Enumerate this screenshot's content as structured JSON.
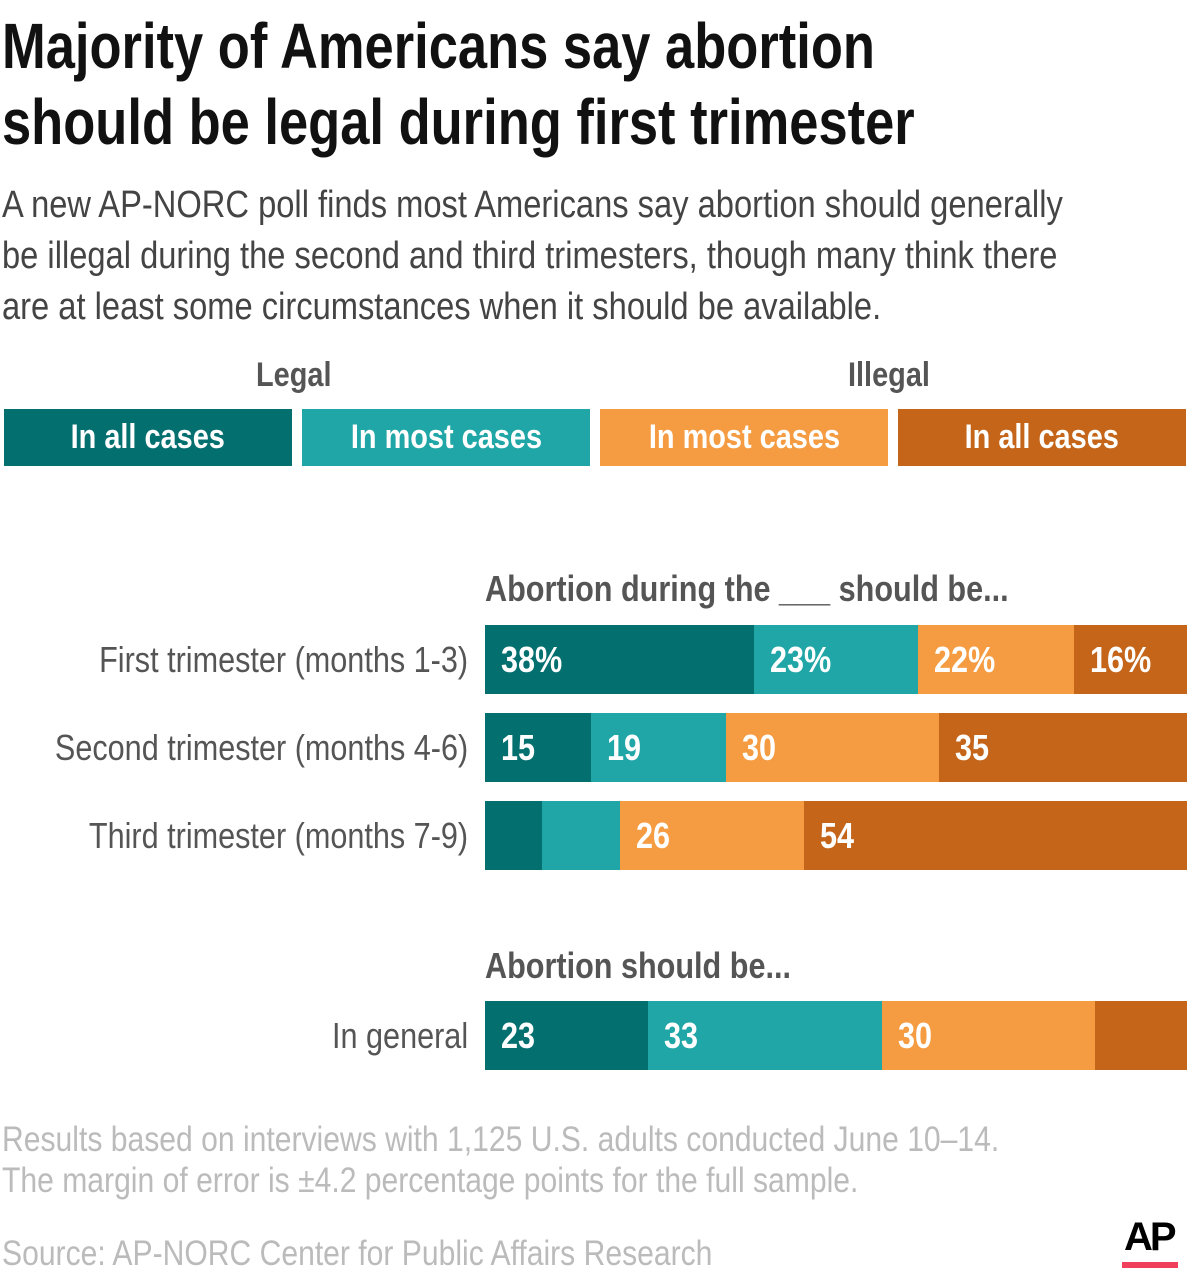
{
  "title_lines": [
    "Majority of Americans say abortion",
    "should be legal during first trimester"
  ],
  "subtitle_lines": [
    "A new AP-NORC poll finds most Americans say abortion should generally",
    "be illegal during the second and third trimesters, though many think there",
    "are at least some circumstances when it should be available."
  ],
  "legend": {
    "group_legal": "Legal",
    "group_illegal": "Illegal",
    "items": [
      {
        "label": "In all cases",
        "color": "#046f6f"
      },
      {
        "label": "In most cases",
        "color": "#20a6a6"
      },
      {
        "label": "In most cases",
        "color": "#f59c42"
      },
      {
        "label": "In all cases",
        "color": "#c4651a"
      }
    ]
  },
  "chart_data": [
    {
      "type": "bar",
      "orientation": "horizontal-stacked",
      "title": "Abortion during the ___ should be...",
      "series_names": [
        "Legal in all cases",
        "Legal in most cases",
        "Illegal in most cases",
        "Illegal in all cases"
      ],
      "categories": [
        "First trimester (months 1-3)",
        "Second trimester (months 4-6)",
        "Third trimester (months 7-9)"
      ],
      "values": [
        [
          38,
          23,
          22,
          16
        ],
        [
          15,
          19,
          30,
          35
        ],
        [
          8,
          11,
          26,
          54
        ]
      ],
      "labels": [
        [
          "38%",
          "23%",
          "22%",
          "16%"
        ],
        [
          "15",
          "19",
          "30",
          "35"
        ],
        [
          "",
          "",
          "26",
          "54"
        ]
      ]
    },
    {
      "type": "bar",
      "orientation": "horizontal-stacked",
      "title": "Abortion should be...",
      "series_names": [
        "Legal in all cases",
        "Legal in most cases",
        "Illegal in most cases",
        "Illegal in all cases"
      ],
      "categories": [
        "In general"
      ],
      "values": [
        [
          23,
          33,
          30,
          13
        ]
      ],
      "labels": [
        [
          "23",
          "33",
          "30",
          ""
        ]
      ]
    }
  ],
  "notes": [
    "Results based on interviews with 1,125 U.S. adults conducted June 10–14.",
    "The margin of error is ±4.2 percentage points for the full sample."
  ],
  "source": "Source: AP-NORC Center for Public Affairs Research",
  "logo": {
    "text": "AP",
    "accent": "#ef3f5a"
  }
}
